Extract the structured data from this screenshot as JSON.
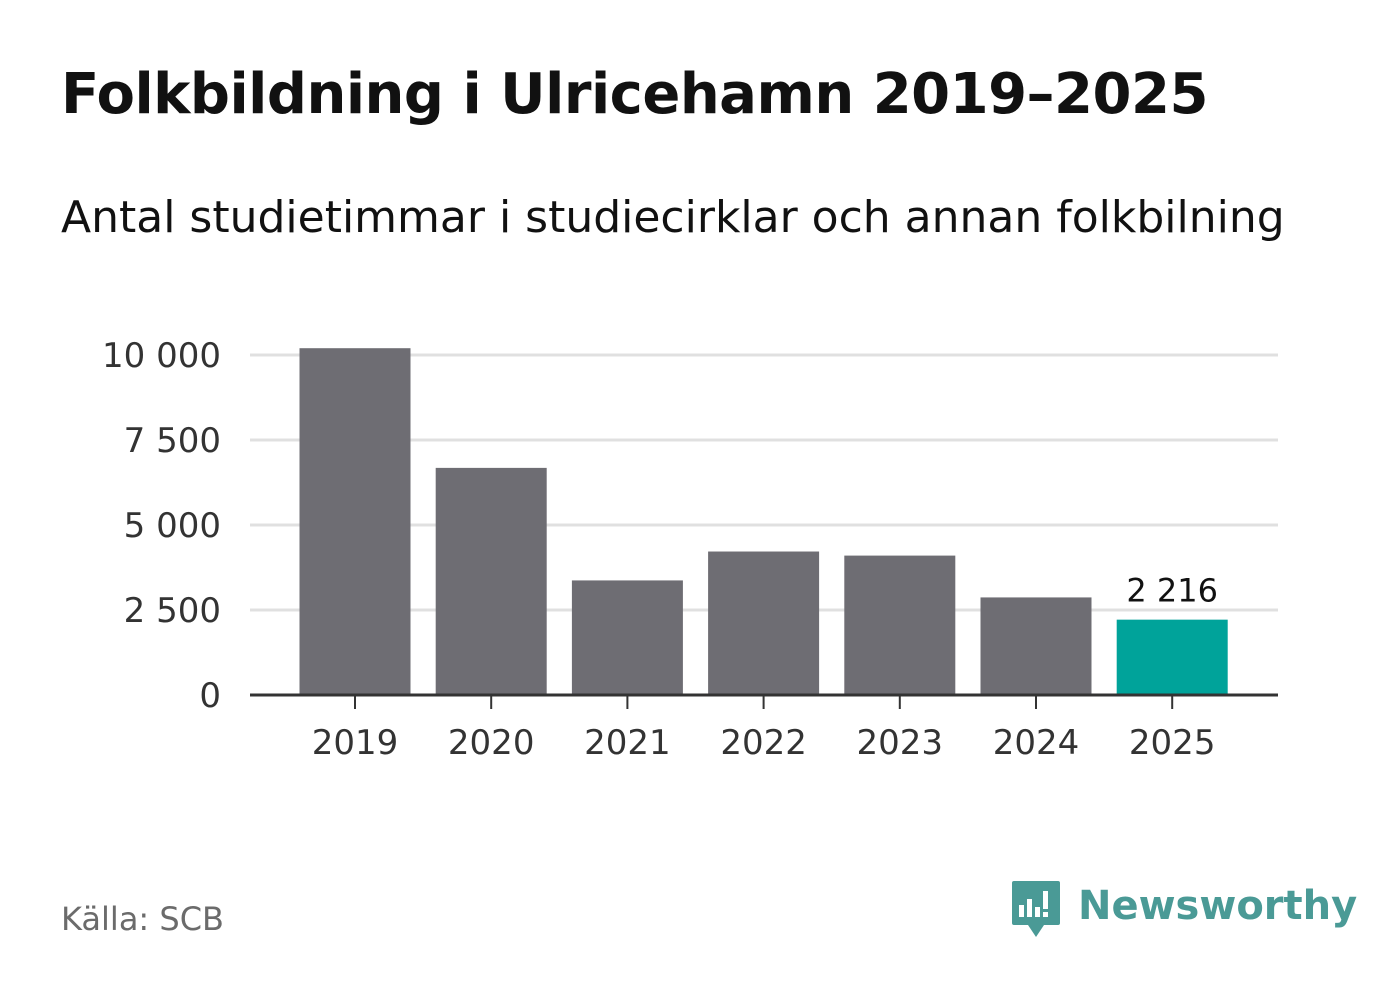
{
  "header": {
    "title": "Folkbildning i Ulricehamn 2019–2025",
    "subtitle": "Antal studietimmar i studiecirklar och annan folkbilning"
  },
  "footer": {
    "source": "Källa: SCB",
    "brand_name": "Newsworthy",
    "brand_icon": "newsworthy-logo-icon",
    "brand_color": "#4a9a96"
  },
  "colors": {
    "bar_default": "#6e6d73",
    "bar_highlight": "#00a39a",
    "gridline": "#e0e0e0",
    "axis": "#333333"
  },
  "chart_data": {
    "type": "bar",
    "title": "Folkbildning i Ulricehamn 2019–2025",
    "subtitle": "Antal studietimmar i studiecirklar och annan folkbilning",
    "xlabel": "",
    "ylabel": "",
    "categories": [
      "2019",
      "2020",
      "2021",
      "2022",
      "2023",
      "2024",
      "2025"
    ],
    "values": [
      10200,
      6680,
      3370,
      4220,
      4100,
      2870,
      2216
    ],
    "highlight_index": 6,
    "highlight_label": "2 216",
    "ylim": [
      0,
      10000
    ],
    "yticks": [
      0,
      2500,
      5000,
      7500,
      10000
    ],
    "ytick_labels": [
      "0",
      "2 500",
      "5 000",
      "7 500",
      "10 000"
    ],
    "grid": true,
    "legend": "none"
  }
}
